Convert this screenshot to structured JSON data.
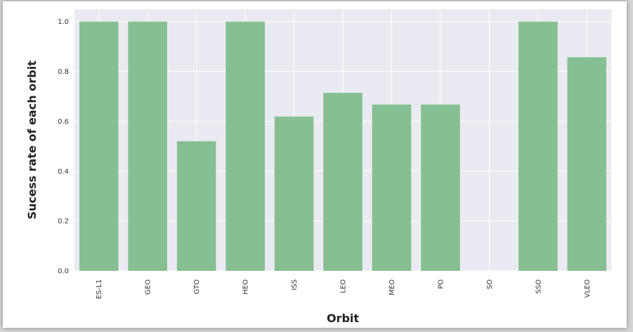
{
  "chart_data": {
    "type": "bar",
    "title": "",
    "xlabel": "Orbit",
    "ylabel": "Sucess rate of each orbit",
    "categories": [
      "ES-L1",
      "GEO",
      "GTO",
      "HEO",
      "ISS",
      "LEO",
      "MEO",
      "PO",
      "SO",
      "SSO",
      "VLEO"
    ],
    "values": [
      1.0,
      1.0,
      0.52,
      1.0,
      0.619,
      0.714,
      0.667,
      0.667,
      0.0,
      1.0,
      0.857
    ],
    "ylim": [
      0.0,
      1.05
    ],
    "yticks": [
      0.0,
      0.2,
      0.4,
      0.6,
      0.8,
      1.0
    ],
    "ytick_labels": [
      "0.0",
      "0.2",
      "0.4",
      "0.6",
      "0.8",
      "1.0"
    ],
    "grid": true,
    "colors": {
      "bar": "#86bf91",
      "plot_background": "#eaeaf2",
      "grid": "#ffffff"
    }
  }
}
